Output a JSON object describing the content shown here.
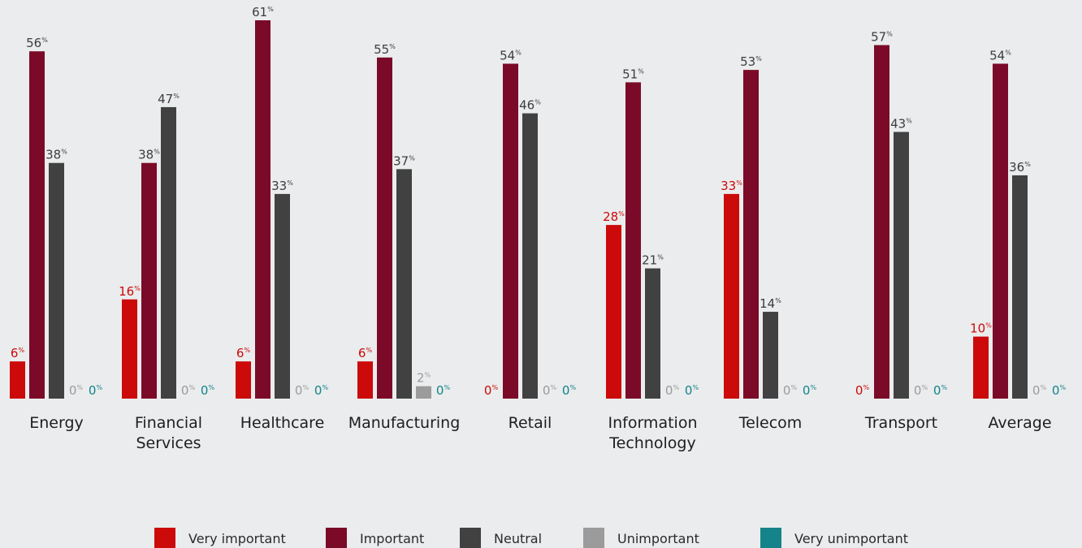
{
  "chart_data": {
    "type": "bar",
    "categories": [
      [
        "Energy"
      ],
      [
        "Financial",
        "Services"
      ],
      [
        "Healthcare"
      ],
      [
        "Manufacturing"
      ],
      [
        "Retail"
      ],
      [
        "Information",
        "Technology"
      ],
      [
        "Telecom"
      ],
      [
        "Transport"
      ],
      [
        "Average"
      ]
    ],
    "series": [
      {
        "name": "Very important",
        "color": "#cc0a0a",
        "label_color": "#cc0a0a",
        "values": [
          6,
          16,
          6,
          6,
          0,
          28,
          33,
          0,
          10
        ]
      },
      {
        "name": "Important",
        "color": "#7b0a28",
        "label_color": "#3d3d3d",
        "values": [
          56,
          38,
          61,
          55,
          54,
          51,
          53,
          57,
          54
        ]
      },
      {
        "name": "Neutral",
        "color": "#414141",
        "label_color": "#3d3d3d",
        "values": [
          38,
          47,
          33,
          37,
          46,
          21,
          14,
          43,
          36
        ]
      },
      {
        "name": "Unimportant",
        "color": "#9b9b9b",
        "label_color": "#9b9b9b",
        "values": [
          0,
          0,
          0,
          2,
          0,
          0,
          0,
          0,
          0
        ]
      },
      {
        "name": "Very unimportant",
        "color": "#14838a",
        "label_color": "#14838a",
        "values": [
          0,
          0,
          0,
          0,
          0,
          0,
          0,
          0,
          0
        ]
      }
    ],
    "value_suffix": "%",
    "ylim": [
      0,
      61
    ],
    "grid": false,
    "legend_position": "bottom"
  }
}
